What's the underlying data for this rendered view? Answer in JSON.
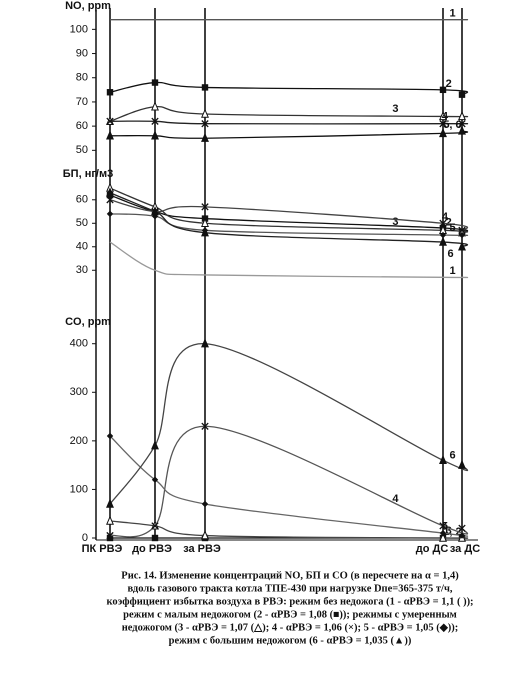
{
  "chart_data": [
    {
      "type": "line",
      "y_label": "NO, ppm",
      "ylim": [
        46,
        108
      ],
      "yticks": [
        50,
        60,
        70,
        80,
        90,
        100
      ],
      "series": [
        {
          "name": "1",
          "color": "#555",
          "marker": "none",
          "values": [
            104,
            104,
            104,
            104,
            104
          ]
        },
        {
          "name": "2",
          "color": "#111",
          "marker": "square",
          "values": [
            74,
            78,
            76,
            75,
            73
          ]
        },
        {
          "name": "3",
          "color": "#333",
          "marker": "triangle",
          "values": [
            62,
            68,
            65,
            64,
            64
          ]
        },
        {
          "name": "4",
          "color": "#222",
          "marker": "x",
          "values": [
            62,
            62,
            61,
            61,
            61
          ]
        },
        {
          "name": "5, 6",
          "color": "#111",
          "marker": "triangle-filled",
          "values": [
            56,
            56,
            55,
            57,
            58
          ]
        }
      ]
    },
    {
      "type": "line",
      "y_label": "БП, нг/м3",
      "ylim": [
        25,
        68
      ],
      "yticks": [
        30,
        40,
        50,
        60
      ],
      "series": [
        {
          "name": "1",
          "color": "#999",
          "marker": "none",
          "values": [
            42,
            30,
            28,
            27,
            27
          ]
        },
        {
          "name": "2",
          "color": "#111",
          "marker": "square",
          "values": [
            62,
            55,
            52,
            48,
            46
          ]
        },
        {
          "name": "3",
          "color": "#333",
          "marker": "triangle",
          "values": [
            65,
            57,
            50,
            47,
            46
          ]
        },
        {
          "name": "4",
          "color": "#444",
          "marker": "x",
          "values": [
            60,
            55,
            57,
            50,
            47
          ]
        },
        {
          "name": "5",
          "color": "#555",
          "marker": "diamond",
          "values": [
            54,
            53,
            47,
            45,
            45
          ]
        },
        {
          "name": "6",
          "color": "#222",
          "marker": "triangle-filled",
          "values": [
            63,
            55,
            46,
            42,
            40
          ]
        }
      ]
    },
    {
      "type": "line",
      "y_label": "CO, ppm",
      "ylim": [
        0,
        420
      ],
      "yticks": [
        0,
        100,
        200,
        300,
        400
      ],
      "categories": [
        "ПК РВЭ",
        "до РВЭ",
        "за РВЭ",
        "до ДС",
        "за ДС"
      ],
      "series": [
        {
          "name": "1, 2",
          "color": "#111",
          "marker": "square",
          "values": [
            0,
            0,
            0,
            0,
            0
          ]
        },
        {
          "name": "3",
          "color": "#444",
          "marker": "triangle",
          "values": [
            35,
            25,
            5,
            0,
            0
          ]
        },
        {
          "name": "4",
          "color": "#555",
          "marker": "x",
          "values": [
            5,
            25,
            230,
            25,
            20
          ]
        },
        {
          "name": "5",
          "color": "#666",
          "marker": "diamond",
          "values": [
            210,
            120,
            70,
            10,
            5
          ]
        },
        {
          "name": "6",
          "color": "#444",
          "marker": "triangle-filled",
          "values": [
            70,
            190,
            400,
            160,
            150
          ]
        }
      ]
    }
  ],
  "caption": [
    "Рис. 14. Изменение концентраций NO, БП и CO (в пересчете на α = 1,4)",
    "вдоль газового тракта котла ТПЕ-430 при нагрузке Dпе=365-375 т/ч,",
    "коэффициент избытка воздуха в РВЭ: режим без недожога (1 - αРВЭ = 1,1 ( ));",
    "режим с малым недожогом (2 - αРВЭ = 1,08 (■)); режимы с умеренным",
    "недожогом (3 - αРВЭ = 1,07 (△); 4 - αРВЭ = 1,06 (×); 5 - αРВЭ = 1,05 (◆));",
    "режим с большим недожогом (6 - αРВЭ = 1,035 (▲))"
  ]
}
